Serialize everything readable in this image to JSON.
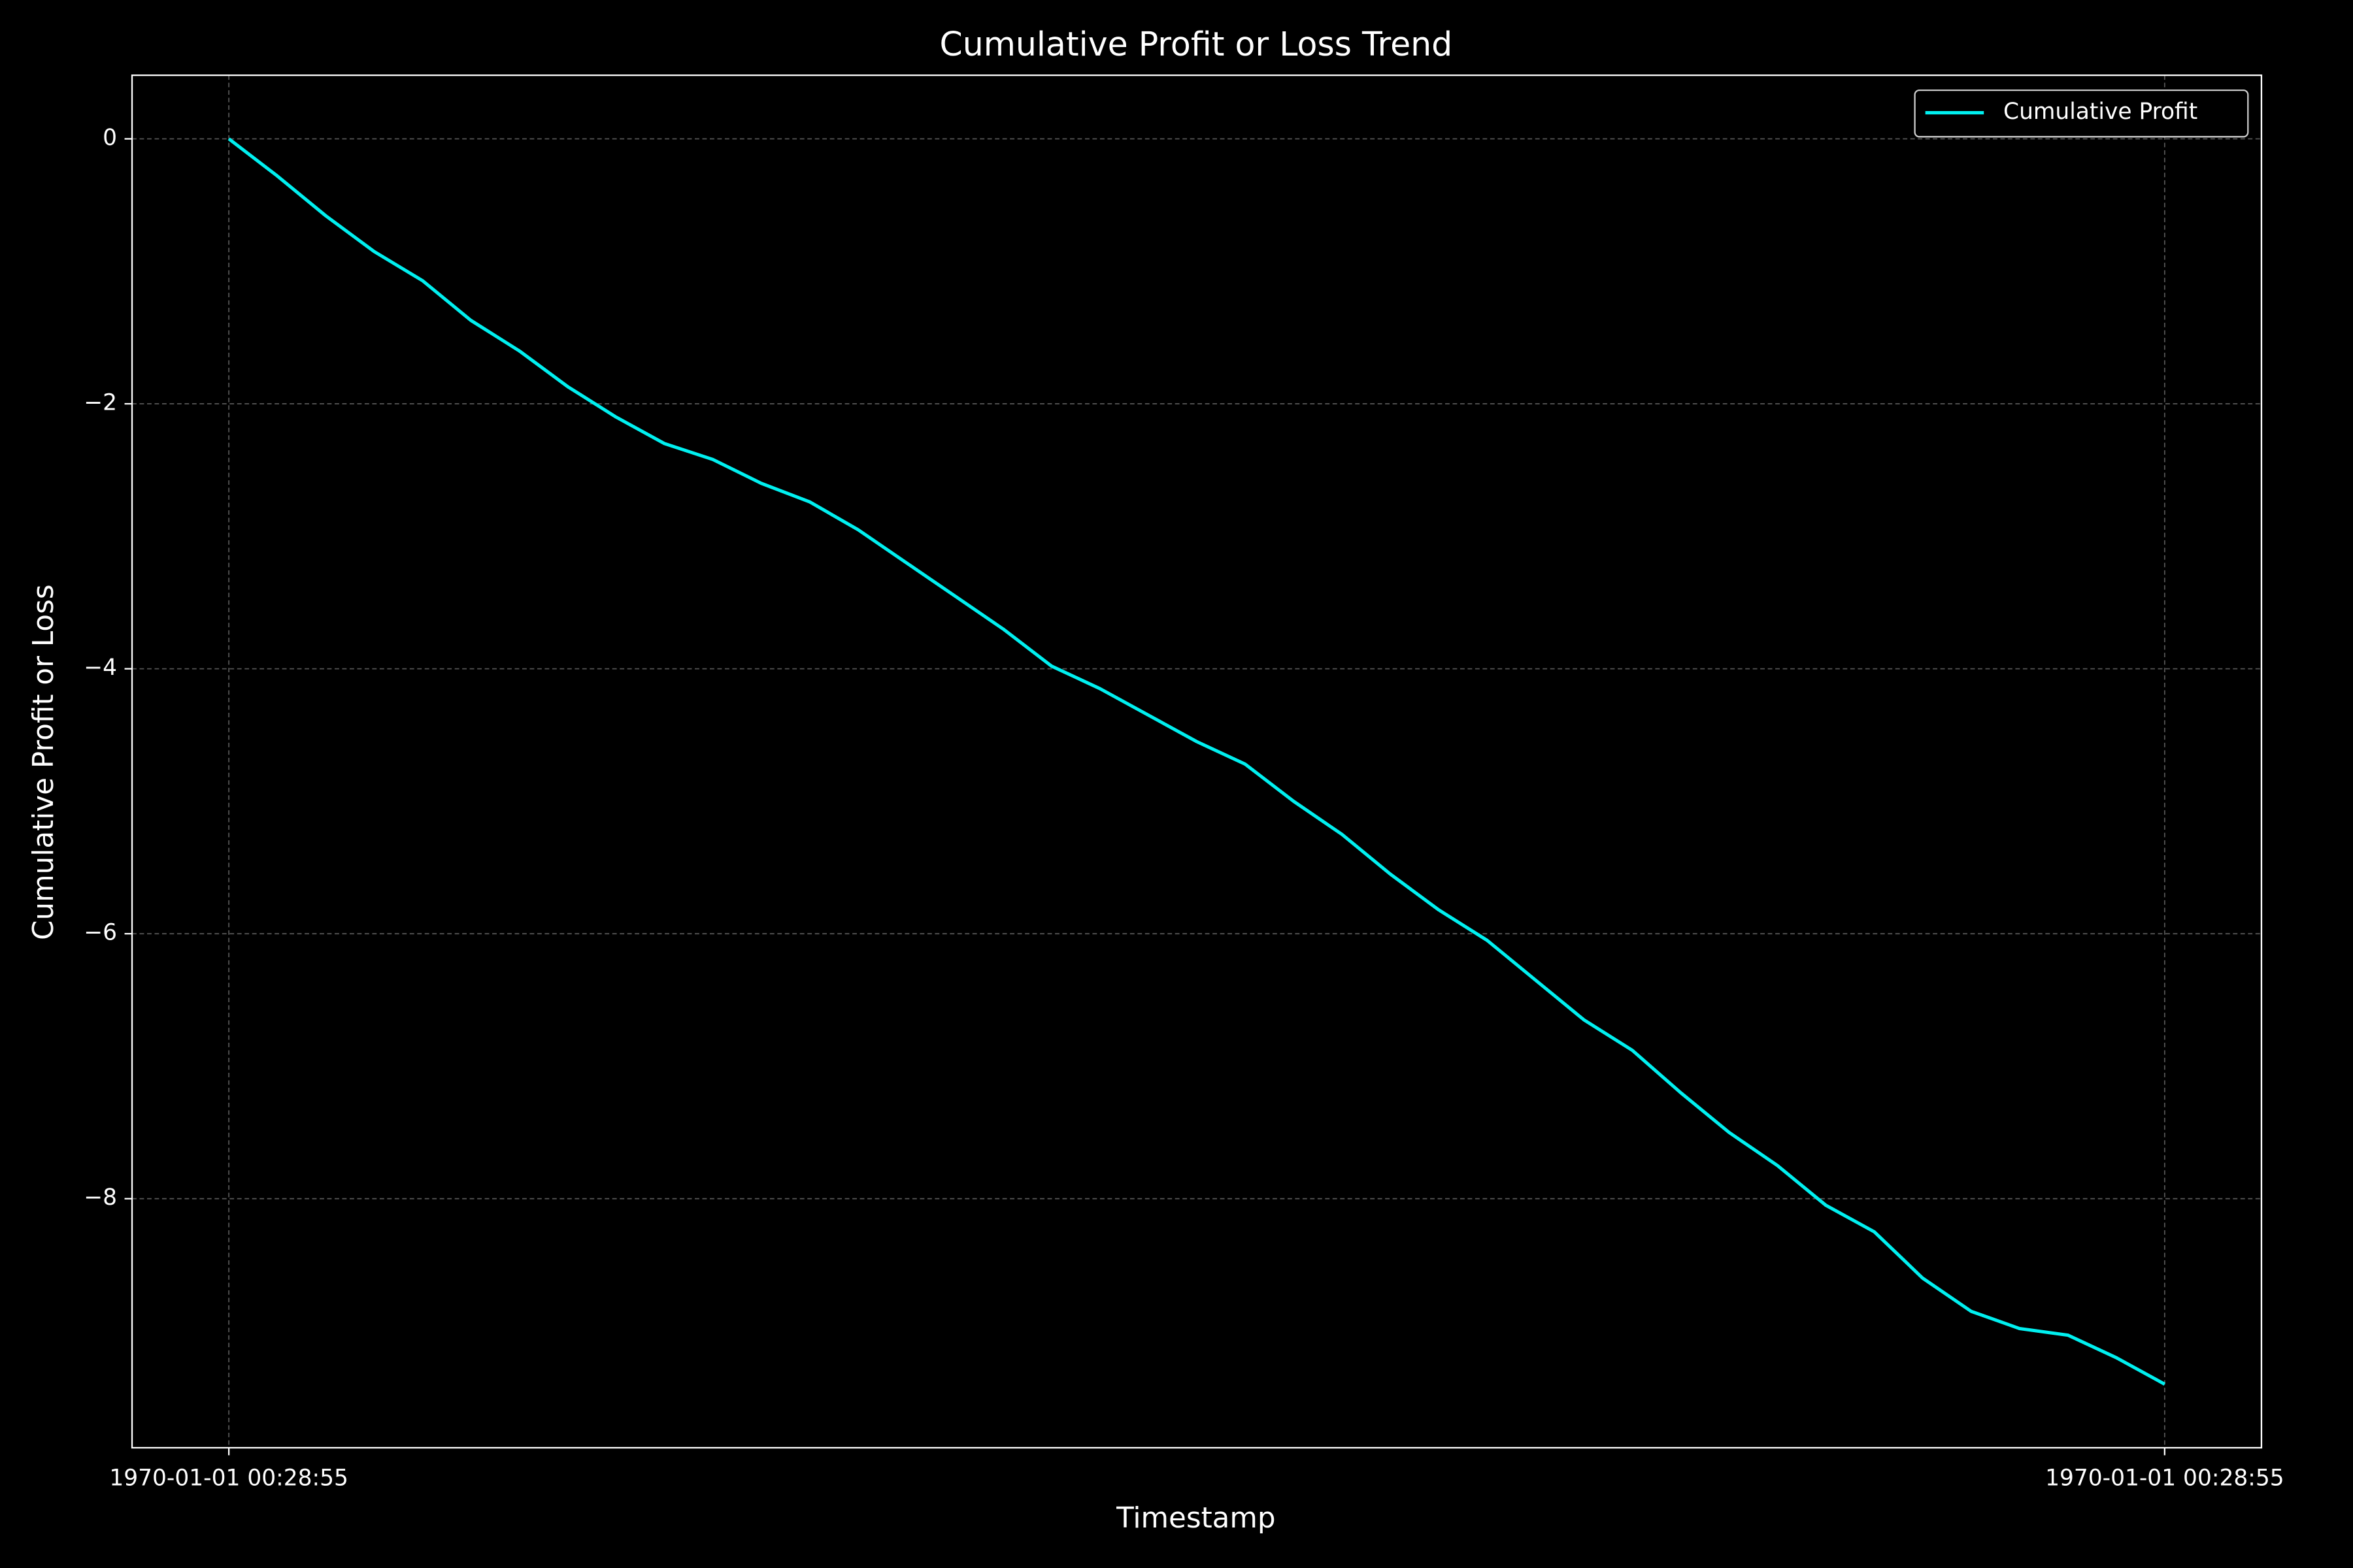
{
  "chart_data": {
    "type": "line",
    "title": "Cumulative Profit or Loss Trend",
    "x_label": "Timestamp",
    "y_label": "Cumulative Profit or Loss",
    "categories": [
      "1970-01-01 00:28:55",
      null,
      null,
      null,
      null,
      null,
      null,
      null,
      null,
      null,
      null,
      null,
      null,
      null,
      null,
      null,
      null,
      null,
      null,
      null,
      null,
      null,
      null,
      null,
      null,
      null,
      null,
      null,
      null,
      null,
      null,
      null,
      null,
      null,
      null,
      null,
      null,
      null,
      null,
      null,
      "1970-01-01 00:28:55"
    ],
    "series": [
      {
        "name": "Cumulative Profit",
        "color": "#00f0f0",
        "values": [
          0,
          -0.28,
          -0.58,
          -0.85,
          -1.07,
          -1.37,
          -1.6,
          -1.87,
          -2.1,
          -2.3,
          -2.42,
          -2.6,
          -2.74,
          -2.95,
          -3.2,
          -3.45,
          -3.7,
          -3.98,
          -4.15,
          -4.35,
          -4.55,
          -4.72,
          -5.0,
          -5.25,
          -5.55,
          -5.82,
          -6.05,
          -6.35,
          -6.65,
          -6.88,
          -7.2,
          -7.5,
          -7.75,
          -8.05,
          -8.25,
          -8.6,
          -8.85,
          -8.98,
          -9.03,
          -9.2,
          -9.4
        ]
      }
    ],
    "ylim": [
      -9.88,
      0.48
    ],
    "yticks": [
      0,
      {
        "value": -2,
        "label": "−2"
      },
      {
        "value": -4,
        "label": "−4"
      },
      {
        "value": -6,
        "label": "−6"
      },
      {
        "value": -8,
        "label": "−8"
      }
    ],
    "grid": true,
    "legend": "upper right"
  }
}
